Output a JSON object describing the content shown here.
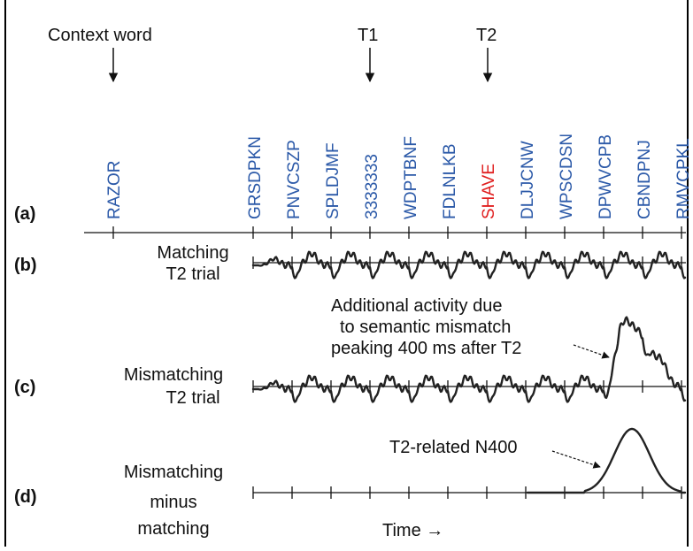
{
  "markers": {
    "context": "Context word",
    "t1": "T1",
    "t2": "T2"
  },
  "words": [
    {
      "text": "RAZOR",
      "color": "#2b59a8"
    },
    {
      "text": "GRSDPKN",
      "color": "#2b59a8"
    },
    {
      "text": "PNVCSZP",
      "color": "#2b59a8"
    },
    {
      "text": "SPLDJMF",
      "color": "#2b59a8"
    },
    {
      "text": "3333333",
      "color": "#2b59a8"
    },
    {
      "text": "WDPTBNF",
      "color": "#2b59a8"
    },
    {
      "text": "FDLNLKB",
      "color": "#2b59a8"
    },
    {
      "text": "SHAVE",
      "color": "#e02020"
    },
    {
      "text": "DLJJCNW",
      "color": "#2b59a8"
    },
    {
      "text": "WPSCDSN",
      "color": "#2b59a8"
    },
    {
      "text": "DPWVCPB",
      "color": "#2b59a8"
    },
    {
      "text": "CBNDPNJ",
      "color": "#2b59a8"
    },
    {
      "text": "RMVCPKL",
      "color": "#2b59a8"
    }
  ],
  "panels": {
    "a": "(a)",
    "b": "(b)",
    "c": "(c)",
    "d": "(d)"
  },
  "labels": {
    "b_line1": "Matching",
    "b_line2": "T2 trial",
    "c_line1": "Mismatching",
    "c_line2": "T2 trial",
    "d_line1": "Mismatching",
    "d_line2": "minus",
    "d_line3": "matching"
  },
  "annotations": {
    "mismatch_line1": "Additional activity due",
    "mismatch_line2": "to semantic mismatch",
    "mismatch_line3": "peaking 400 ms after T2",
    "n400": "T2-related N400"
  },
  "time_label": "Time →"
}
